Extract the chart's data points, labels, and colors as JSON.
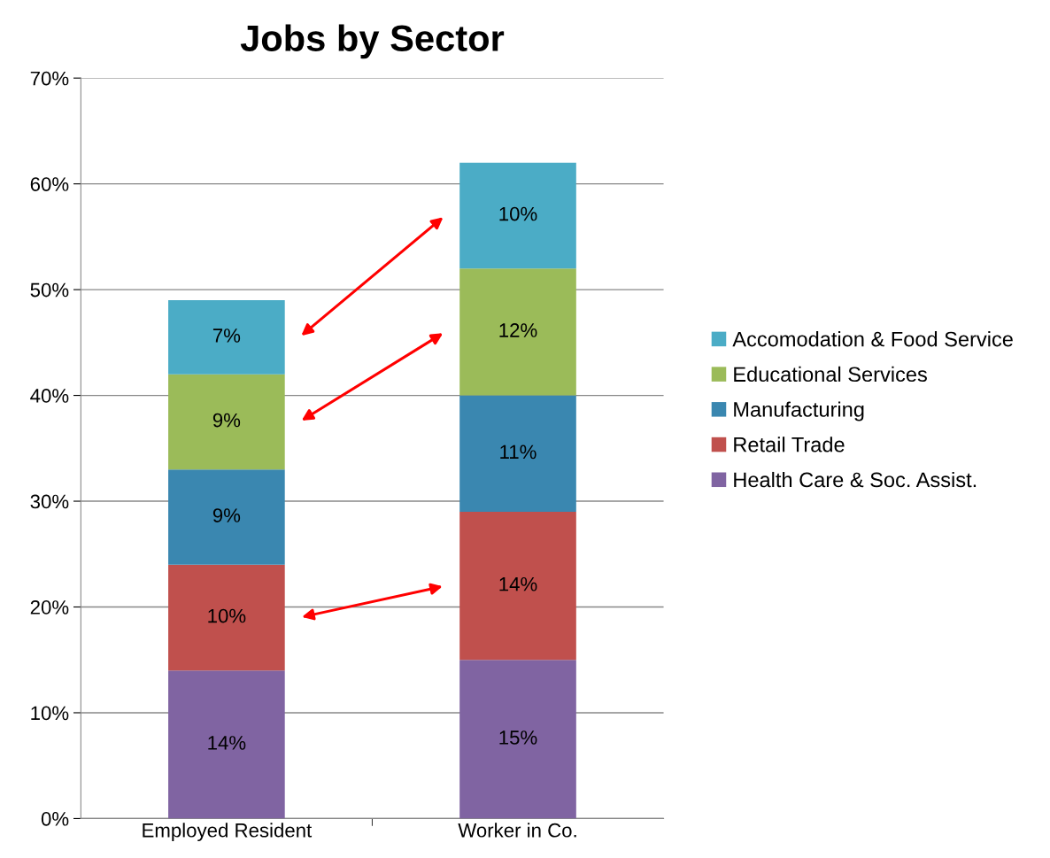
{
  "chart_data": {
    "type": "bar",
    "title": "Jobs by Sector",
    "categories": [
      "Employed Resident",
      "Worker in Co."
    ],
    "stacked": true,
    "grid": "y",
    "legend": "right",
    "ylim": [
      0,
      70
    ],
    "yticks": [
      {
        "value": 0,
        "label": "0%"
      },
      {
        "value": 10,
        "label": "10%"
      },
      {
        "value": 20,
        "label": "20%"
      },
      {
        "value": 30,
        "label": "30%"
      },
      {
        "value": 40,
        "label": "40%"
      },
      {
        "value": 50,
        "label": "50%"
      },
      {
        "value": 60,
        "label": "60%"
      },
      {
        "value": 70,
        "label": "70%"
      }
    ],
    "series": [
      {
        "name": "Health Care & Soc. Assist.",
        "color": "#8064a2",
        "values": [
          14,
          15
        ],
        "value_labels": [
          "14%",
          "15%"
        ]
      },
      {
        "name": "Retail Trade",
        "color": "#c0504d",
        "values": [
          10,
          14
        ],
        "value_labels": [
          "10%",
          "14%"
        ]
      },
      {
        "name": "Manufacturing",
        "color": "#3a87b0",
        "values": [
          9,
          11
        ],
        "value_labels": [
          "9%",
          "11%"
        ]
      },
      {
        "name": "Educational Services",
        "color": "#9bbb59",
        "values": [
          9,
          12
        ],
        "value_labels": [
          "9%",
          "12%"
        ]
      },
      {
        "name": "Accomodation & Food Service",
        "color": "#4bacc6",
        "values": [
          7,
          10
        ],
        "value_labels": [
          "7%",
          "10%"
        ]
      }
    ]
  }
}
